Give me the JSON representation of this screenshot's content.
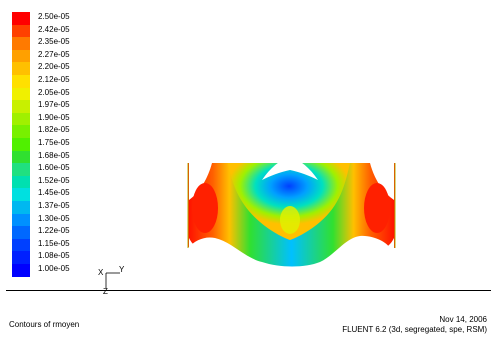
{
  "legend": {
    "ticks": [
      "2.50e-05",
      "2.42e-05",
      "2.35e-05",
      "2.27e-05",
      "2.20e-05",
      "2.12e-05",
      "2.05e-05",
      "1.97e-05",
      "1.90e-05",
      "1.82e-05",
      "1.75e-05",
      "1.68e-05",
      "1.60e-05",
      "1.52e-05",
      "1.45e-05",
      "1.37e-05",
      "1.30e-05",
      "1.22e-05",
      "1.15e-05",
      "1.08e-05",
      "1.00e-05"
    ],
    "colors": [
      "#ff0000",
      "#ff4000",
      "#ff7a00",
      "#ffa000",
      "#ffc000",
      "#ffe000",
      "#f0f000",
      "#c8f000",
      "#a0f000",
      "#78f000",
      "#50f000",
      "#30e030",
      "#20e080",
      "#00e0b0",
      "#00e0e0",
      "#00b8f0",
      "#0090ff",
      "#0068ff",
      "#0040ff",
      "#0020ff",
      "#0000ff"
    ]
  },
  "axes": {
    "x_label": "Y",
    "y_label": "Z",
    "origin_label": "X"
  },
  "footer": {
    "title": "Contours of rmoyen",
    "date": "Nov 14, 2006",
    "solver": "FLUENT 6.2 (3d, segregated, spe, RSM)"
  }
}
